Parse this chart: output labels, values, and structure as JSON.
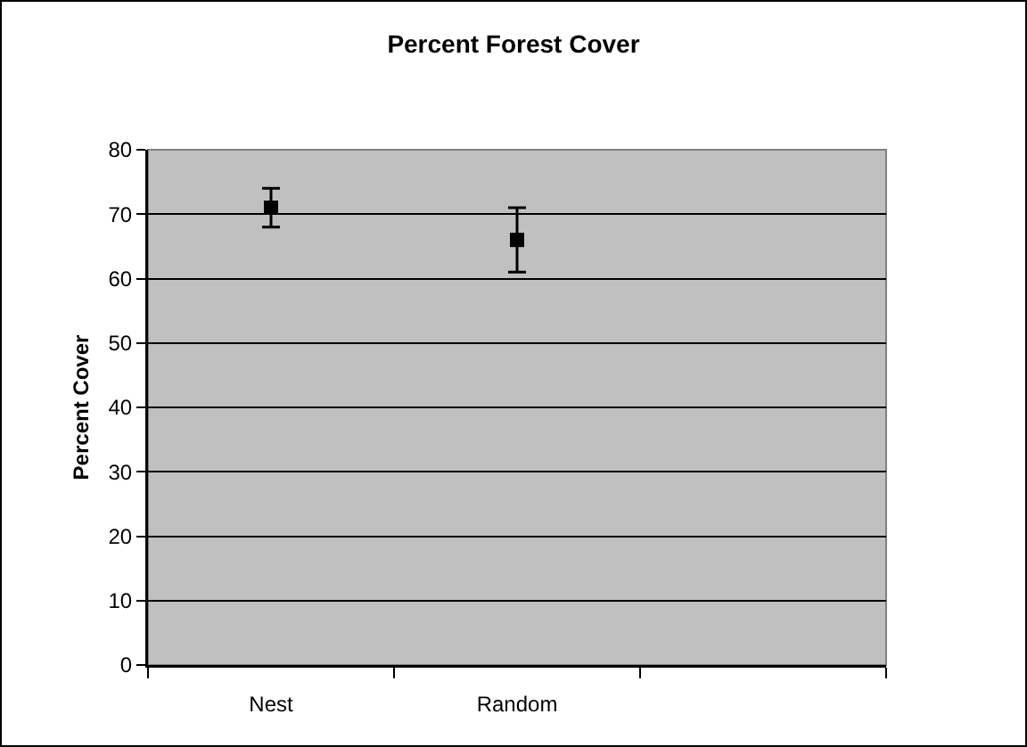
{
  "chart_data": {
    "type": "scatter",
    "title": "Percent Forest Cover",
    "ylabel": "Percent Cover",
    "categories": [
      "Nest",
      "Random",
      null
    ],
    "series": [
      {
        "color": "#000000",
        "values": [
          71,
          66,
          null
        ],
        "errors": [
          3,
          5,
          null
        ]
      }
    ],
    "ylim": [
      0,
      80
    ],
    "yticks": [
      0,
      10,
      20,
      30,
      40,
      50,
      60,
      70,
      80
    ],
    "grid": "y",
    "marker": "square"
  }
}
